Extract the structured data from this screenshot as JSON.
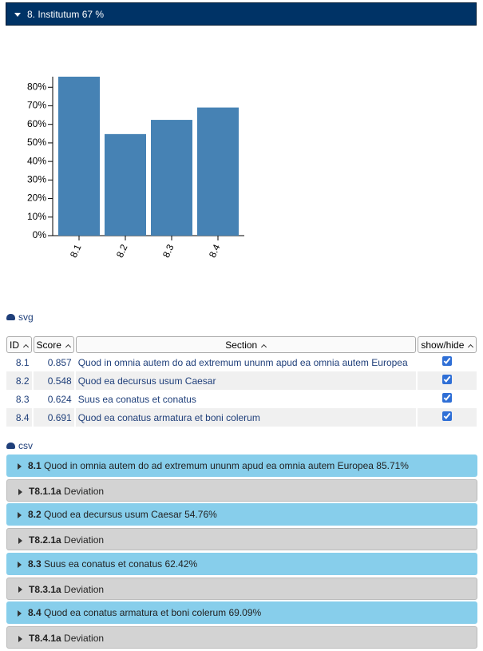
{
  "header": {
    "title": "8. Institutum 67 %"
  },
  "chart_data": {
    "type": "bar",
    "categories": [
      "8.1",
      "8.2",
      "8.3",
      "8.4"
    ],
    "values": [
      85.71,
      54.76,
      62.42,
      69.09
    ],
    "color": "#4682b4",
    "ylim": [
      0,
      85.71
    ],
    "yticks": [
      {
        "value": 0,
        "label": "0%"
      },
      {
        "value": 10,
        "label": "10%"
      },
      {
        "value": 20,
        "label": "20%"
      },
      {
        "value": 30,
        "label": "30%"
      },
      {
        "value": 40,
        "label": "40%"
      },
      {
        "value": 50,
        "label": "50%"
      },
      {
        "value": 60,
        "label": "60%"
      },
      {
        "value": 70,
        "label": "70%"
      },
      {
        "value": 80,
        "label": "80%"
      }
    ]
  },
  "svg_link": "svg",
  "table": {
    "columns": [
      "ID",
      "Score",
      "Section",
      "show/hide"
    ],
    "rows": [
      [
        "8.1",
        "0.857",
        "Quod in omnia autem do ad extremum ununm apud ea omnia autem Europea",
        true
      ],
      [
        "8.2",
        "0.548",
        "Quod ea decursus usum Caesar",
        true
      ],
      [
        "8.3",
        "0.624",
        "Suus ea conatus et conatus",
        true
      ],
      [
        "8.4",
        "0.691",
        "Quod ea conatus armatura et boni colerum",
        true
      ]
    ]
  },
  "csv_link": "csv",
  "sections": [
    {
      "id": "8.1",
      "label": "Quod in omnia autem do ad extremum ununm apud ea omnia autem Europea 85.71%"
    },
    {
      "id": "T8.1.1a",
      "label": "Deviation"
    },
    {
      "id": "8.2",
      "label": "Quod ea decursus usum Caesar 54.76%"
    },
    {
      "id": "T8.2.1a",
      "label": "Deviation"
    },
    {
      "id": "8.3",
      "label": "Suus ea conatus et conatus 62.42%"
    },
    {
      "id": "T8.3.1a",
      "label": "Deviation"
    },
    {
      "id": "8.4",
      "label": "Quod ea conatus armatura et boni colerum 69.09%"
    },
    {
      "id": "T8.4.1a",
      "label": "Deviation"
    }
  ]
}
